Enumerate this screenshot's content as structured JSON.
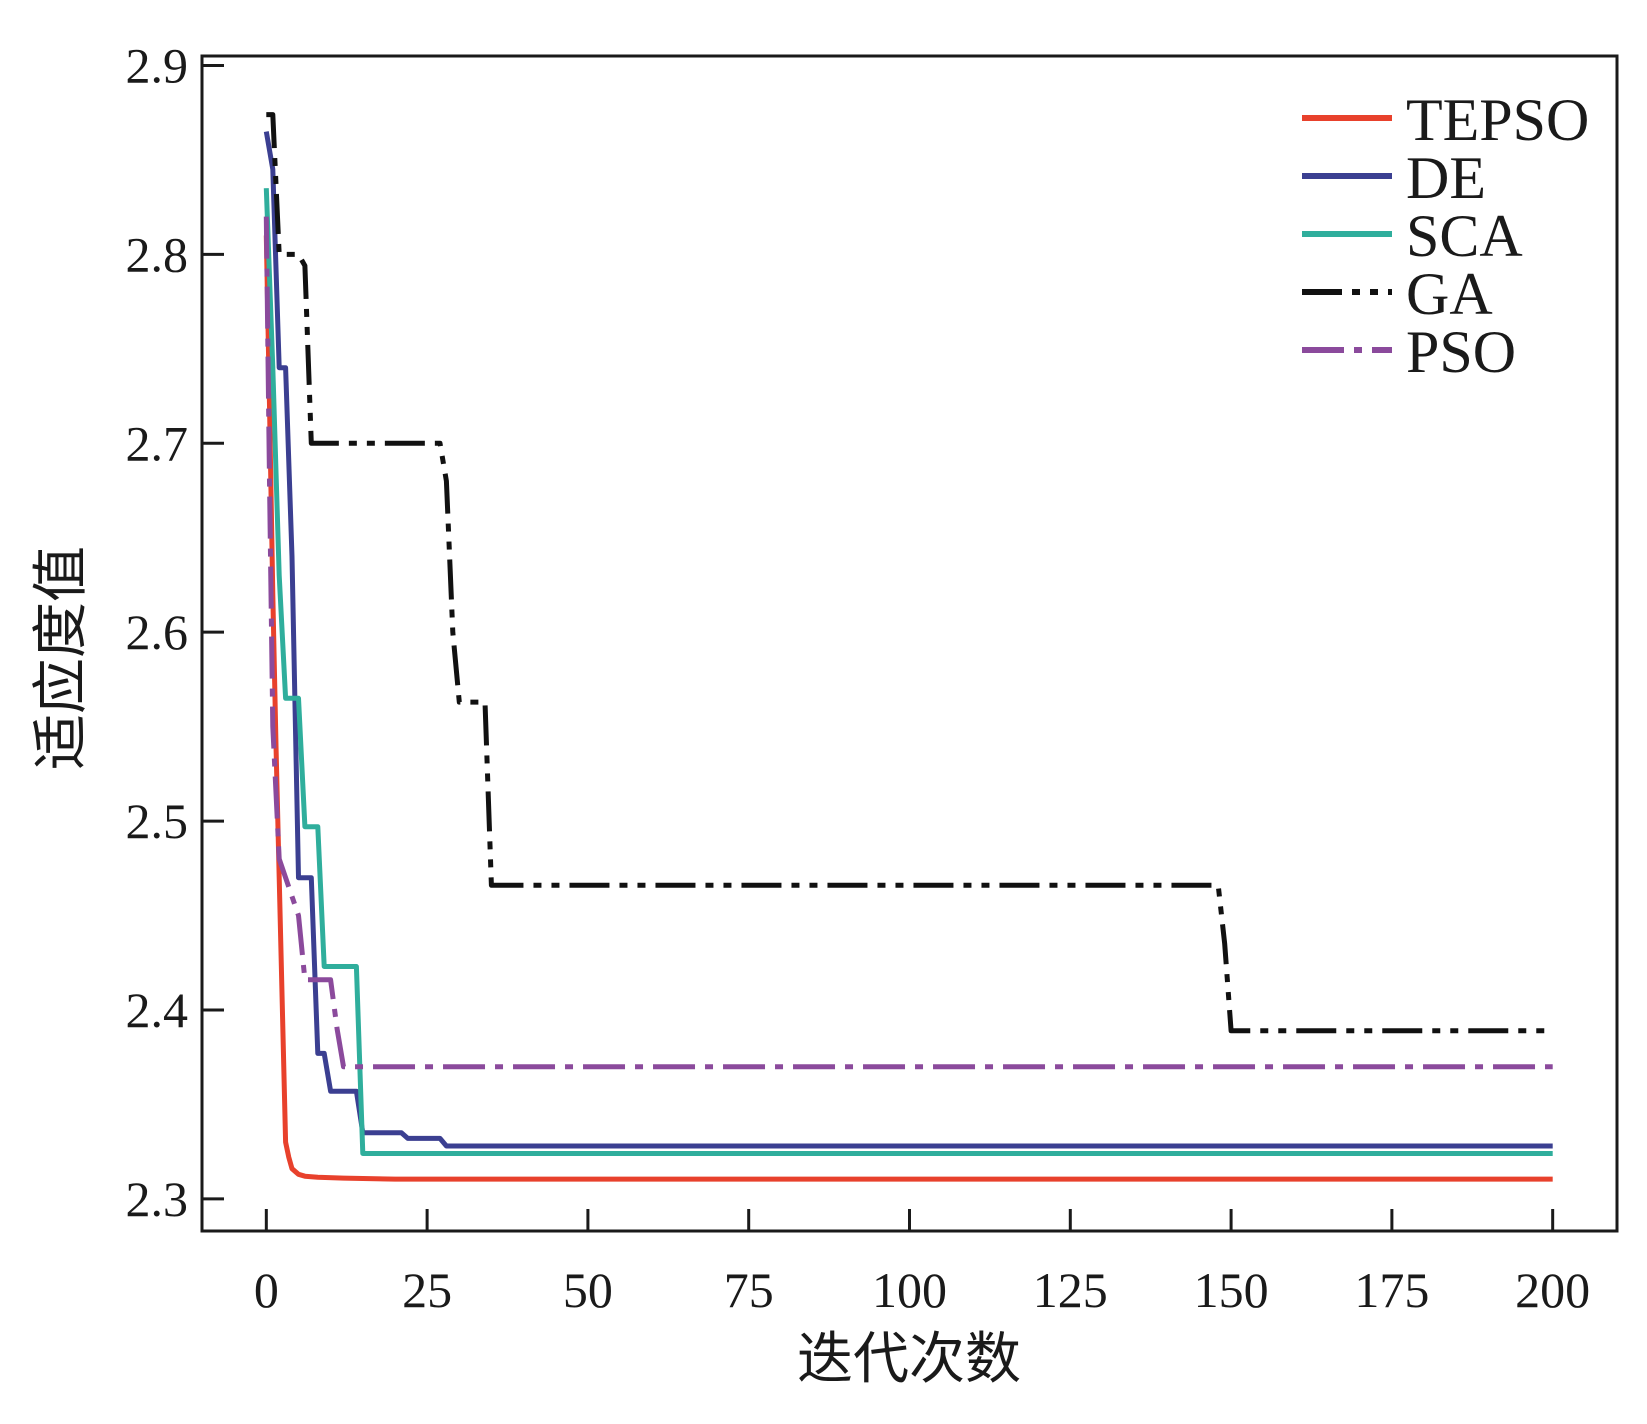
{
  "chart_data": {
    "type": "line",
    "xlabel": "迭代次数",
    "ylabel": "适应度值",
    "xlim": [
      -10,
      210
    ],
    "ylim": [
      2.283,
      2.905
    ],
    "xticks": [
      0,
      25,
      50,
      75,
      100,
      125,
      150,
      175,
      200
    ],
    "yticks": [
      2.3,
      2.4,
      2.5,
      2.6,
      2.7,
      2.8,
      2.9
    ],
    "x_tick_labels": [
      "0",
      "25",
      "50",
      "75",
      "100",
      "125",
      "150",
      "175",
      "200"
    ],
    "y_tick_labels": [
      "2.3",
      "2.4",
      "2.5",
      "2.6",
      "2.7",
      "2.8",
      "2.9"
    ],
    "grid": false,
    "legend_position": "top-right",
    "series": [
      {
        "name": "TEPSO",
        "color": "#e8412c",
        "style": "solid",
        "points": [
          [
            0,
            2.81
          ],
          [
            0.5,
            2.72
          ],
          [
            1,
            2.62
          ],
          [
            1.5,
            2.54
          ],
          [
            2,
            2.47
          ],
          [
            2.5,
            2.4
          ],
          [
            3,
            2.33
          ],
          [
            3.5,
            2.322
          ],
          [
            4,
            2.316
          ],
          [
            5,
            2.313
          ],
          [
            6,
            2.312
          ],
          [
            8,
            2.3115
          ],
          [
            12,
            2.311
          ],
          [
            20,
            2.3105
          ],
          [
            50,
            2.3105
          ],
          [
            100,
            2.3105
          ],
          [
            150,
            2.3105
          ],
          [
            200,
            2.3105
          ]
        ]
      },
      {
        "name": "DE",
        "color": "#3b3f91",
        "style": "solid",
        "points": [
          [
            0,
            2.865
          ],
          [
            1,
            2.845
          ],
          [
            2,
            2.74
          ],
          [
            3,
            2.74
          ],
          [
            4,
            2.64
          ],
          [
            5,
            2.47
          ],
          [
            7,
            2.47
          ],
          [
            8,
            2.377
          ],
          [
            9,
            2.377
          ],
          [
            10,
            2.357
          ],
          [
            14,
            2.357
          ],
          [
            15,
            2.335
          ],
          [
            21,
            2.335
          ],
          [
            22,
            2.332
          ],
          [
            27,
            2.332
          ],
          [
            28,
            2.328
          ],
          [
            200,
            2.328
          ]
        ]
      },
      {
        "name": "SCA",
        "color": "#2fae9c",
        "style": "solid",
        "points": [
          [
            0,
            2.835
          ],
          [
            1,
            2.74
          ],
          [
            2,
            2.63
          ],
          [
            3,
            2.565
          ],
          [
            5,
            2.565
          ],
          [
            6,
            2.497
          ],
          [
            8,
            2.497
          ],
          [
            9,
            2.423
          ],
          [
            14,
            2.423
          ],
          [
            15,
            2.324
          ],
          [
            200,
            2.324
          ]
        ]
      },
      {
        "name": "GA",
        "color": "#111111",
        "style": "dashdotdot",
        "points": [
          [
            0,
            2.874
          ],
          [
            1,
            2.874
          ],
          [
            2,
            2.8
          ],
          [
            5,
            2.8
          ],
          [
            6,
            2.794
          ],
          [
            7,
            2.7
          ],
          [
            27,
            2.7
          ],
          [
            28,
            2.68
          ],
          [
            29,
            2.6
          ],
          [
            30,
            2.563
          ],
          [
            34,
            2.563
          ],
          [
            35,
            2.466
          ],
          [
            148,
            2.466
          ],
          [
            149,
            2.435
          ],
          [
            150,
            2.389
          ],
          [
            200,
            2.389
          ]
        ]
      },
      {
        "name": "PSO",
        "color": "#8b4a9c",
        "style": "dashdot",
        "points": [
          [
            0,
            2.82
          ],
          [
            0.5,
            2.68
          ],
          [
            1,
            2.55
          ],
          [
            2,
            2.48
          ],
          [
            3,
            2.47
          ],
          [
            5,
            2.45
          ],
          [
            6,
            2.416
          ],
          [
            10,
            2.416
          ],
          [
            11,
            2.39
          ],
          [
            12,
            2.37
          ],
          [
            200,
            2.37
          ]
        ]
      }
    ]
  }
}
